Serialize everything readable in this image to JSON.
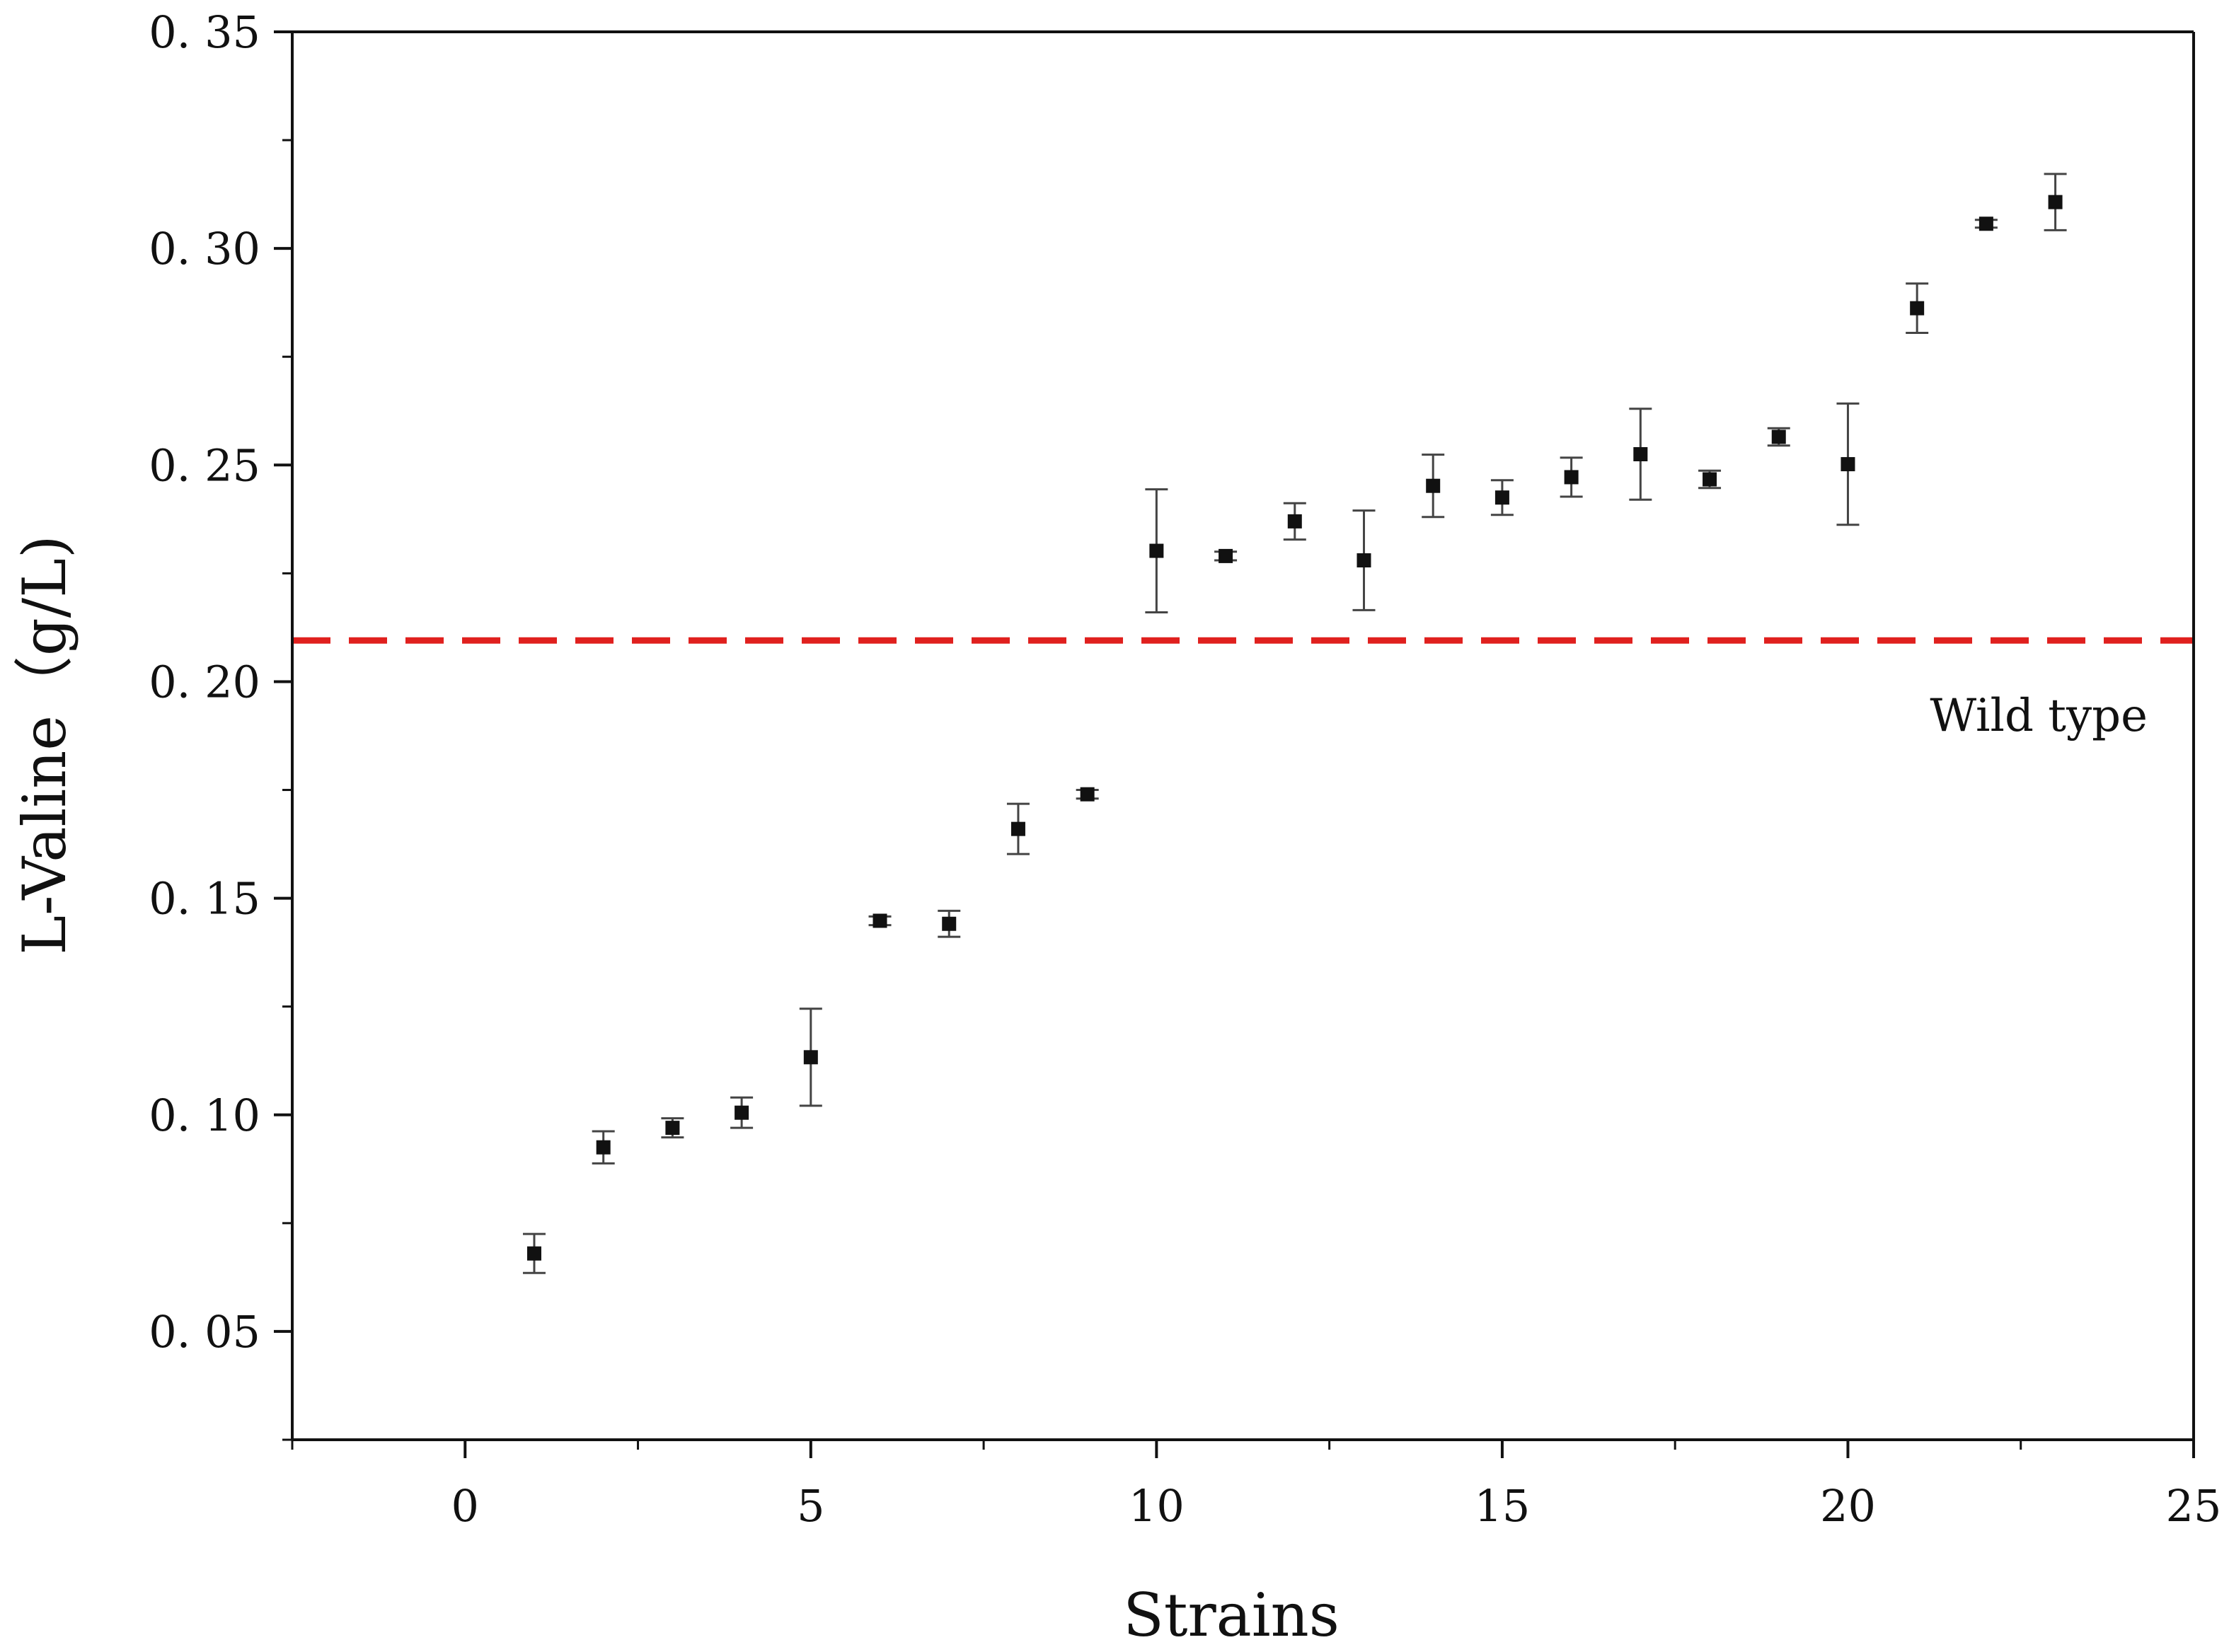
{
  "chart_data": {
    "type": "scatter",
    "title": "",
    "xlabel": "Strains",
    "ylabel": "L-Valine（g/L)",
    "xlim": [
      -2.5,
      25
    ],
    "ylim": [
      0.025,
      0.35
    ],
    "x_ticks": [
      0,
      5,
      10,
      15,
      20,
      25
    ],
    "x_tick_labels": [
      "0",
      "5",
      "10",
      "15",
      "20",
      "25"
    ],
    "y_ticks": [
      0.05,
      0.1,
      0.15,
      0.2,
      0.25,
      0.3,
      0.35
    ],
    "y_tick_labels": [
      "0. 05",
      "0. 10",
      "0. 15",
      "0. 20",
      "0. 25",
      "0. 30",
      "0. 35"
    ],
    "grid": false,
    "legend": "none",
    "series": [
      {
        "x": [
          1,
          2,
          3,
          4,
          5,
          6,
          7,
          8,
          9,
          10,
          11,
          12,
          13,
          14,
          15,
          16,
          17,
          18,
          19,
          20,
          21,
          22,
          23
        ],
        "y": [
          0.068,
          0.0925,
          0.097,
          0.1005,
          0.1133,
          0.1448,
          0.1441,
          0.166,
          0.174,
          0.2302,
          0.229,
          0.237,
          0.228,
          0.2452,
          0.2425,
          0.2472,
          0.2525,
          0.2467,
          0.2565,
          0.2502,
          0.2862,
          0.3057,
          0.3107
        ],
        "err": [
          0.0045,
          0.0037,
          0.0022,
          0.0035,
          0.0112,
          0.001,
          0.003,
          0.0058,
          0.001,
          0.0142,
          0.001,
          0.0042,
          0.0115,
          0.0072,
          0.004,
          0.0045,
          0.0105,
          0.002,
          0.002,
          0.014,
          0.0057,
          0.0009,
          0.0065
        ],
        "color": "#111111"
      }
    ],
    "reference_line": {
      "y": 0.2095,
      "label": "Wild type",
      "color": "#e0201e",
      "style": "dashed"
    }
  }
}
